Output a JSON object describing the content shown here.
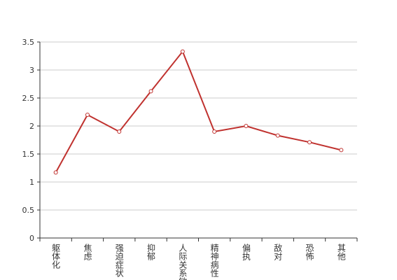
{
  "chart_data": {
    "type": "line",
    "categories": [
      "躯体化",
      "焦虑",
      "强迫症状",
      "抑郁",
      "人际关系敏感",
      "精神病性",
      "偏执",
      "敌对",
      "恐怖",
      "其他"
    ],
    "values": [
      1.17,
      2.2,
      1.9,
      2.62,
      3.33,
      1.9,
      2.0,
      1.83,
      1.71,
      1.57
    ],
    "color": "#c0322f",
    "ylim": [
      0,
      3.5
    ],
    "yticks": [
      0,
      0.5,
      1,
      1.5,
      2,
      2.5,
      3,
      3.5
    ],
    "grid": true
  }
}
